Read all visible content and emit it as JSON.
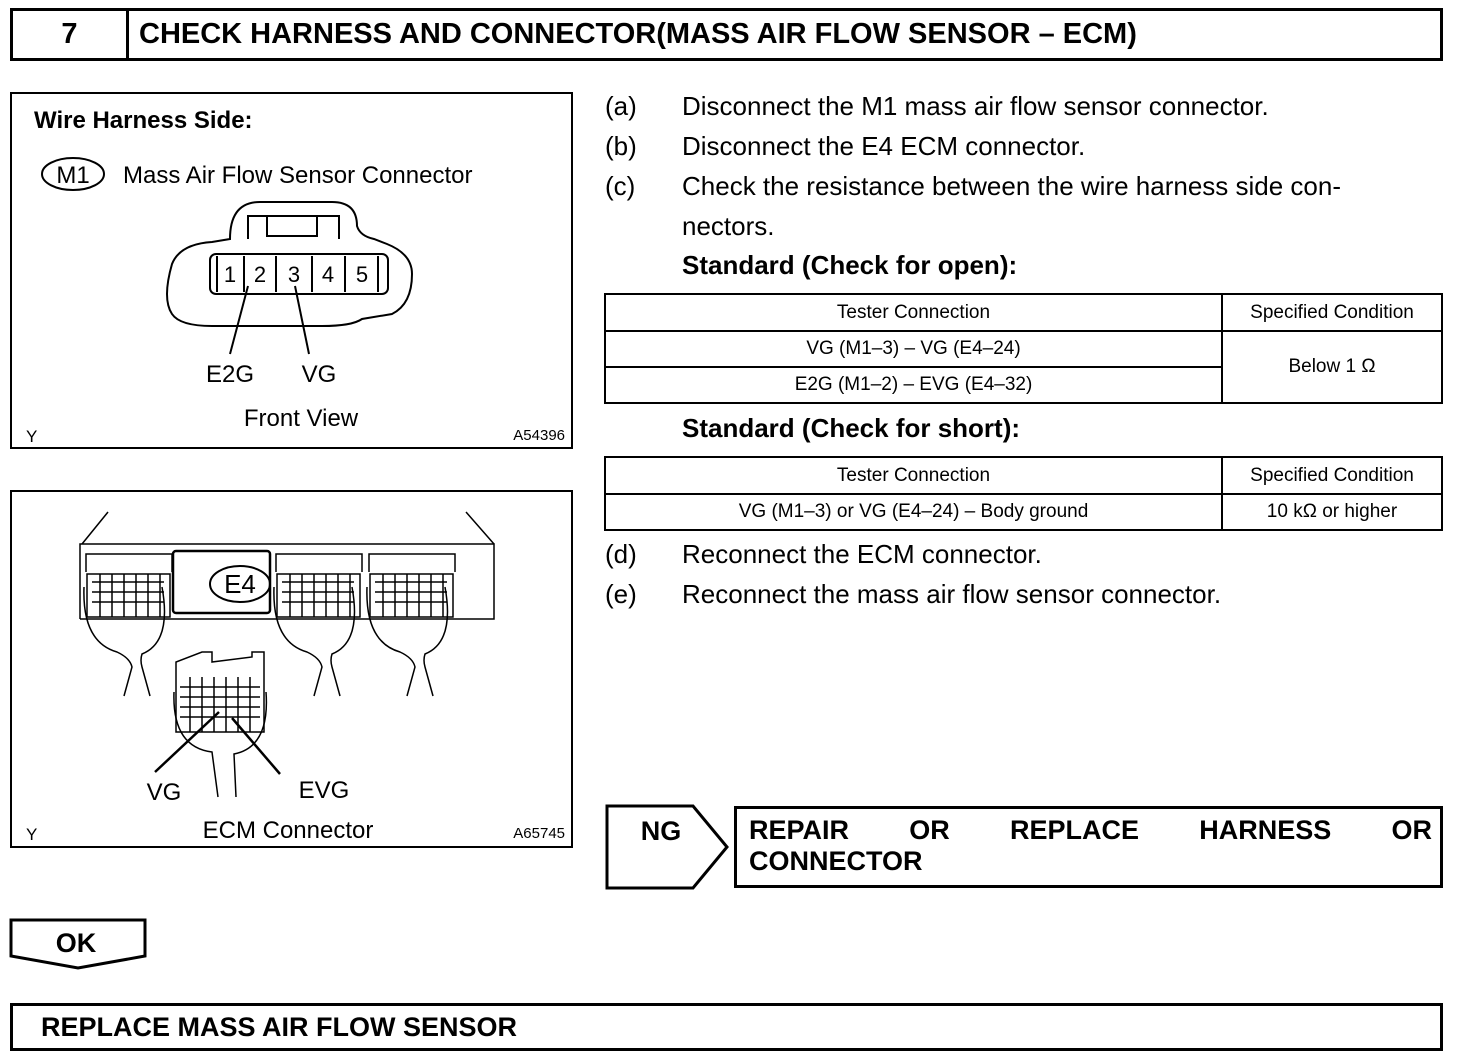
{
  "header": {
    "step_number": "7",
    "title": "CHECK HARNESS AND CONNECTOR(MASS AIR FLOW SENSOR – ECM)"
  },
  "figure1": {
    "heading": "Wire Harness Side:",
    "connector_code": "M1",
    "connector_name": "Mass Air Flow Sensor Connector",
    "pins": [
      "1",
      "2",
      "3",
      "4",
      "5"
    ],
    "label_e2g": "E2G",
    "label_vg": "VG",
    "view": "Front View",
    "corner_left": "Y",
    "figure_id": "A54396"
  },
  "figure2": {
    "connector_code": "E4",
    "label_vg": "VG",
    "label_evg": "EVG",
    "caption": "ECM Connector",
    "corner_left": "Y",
    "figure_id": "A65745"
  },
  "steps": [
    {
      "letter": "(a)",
      "text": "Disconnect the M1 mass air flow sensor connector."
    },
    {
      "letter": "(b)",
      "text": "Disconnect the E4 ECM connector."
    },
    {
      "letter": "(c)",
      "text": "Check the resistance between the wire harness side con-",
      "text2": "nectors."
    },
    {
      "letter": "(d)",
      "text": "Reconnect the ECM connector."
    },
    {
      "letter": "(e)",
      "text": "Reconnect the mass air flow sensor connector."
    }
  ],
  "standard_open": {
    "title": "Standard (Check for open):",
    "headers": [
      "Tester Connection",
      "Specified Condition"
    ],
    "rows": [
      [
        "VG (M1–3) – VG (E4–24)"
      ],
      [
        "E2G (M1–2) – EVG (E4–32)"
      ]
    ],
    "condition": "Below 1 Ω"
  },
  "standard_short": {
    "title": "Standard (Check for short):",
    "headers": [
      "Tester Connection",
      "Specified Condition"
    ],
    "rows": [
      [
        "VG (M1–3) or VG (E4–24) – Body ground",
        "10 kΩ or higher"
      ]
    ]
  },
  "ng": {
    "label": "NG",
    "action": "REPAIR OR REPLACE HARNESS OR CONNECTOR",
    "action_line1": [
      "REPAIR",
      "OR",
      "REPLACE",
      "HARNESS",
      "OR"
    ],
    "action_line2": "CONNECTOR"
  },
  "ok": {
    "label": "OK",
    "action": "REPLACE MASS AIR FLOW SENSOR"
  }
}
